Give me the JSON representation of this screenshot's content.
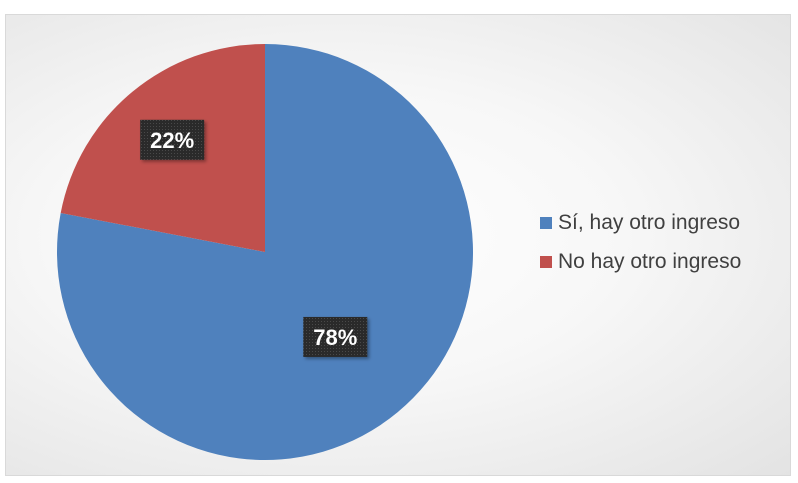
{
  "chart_data": {
    "type": "pie",
    "title": "",
    "categories": [
      "Sí, hay otro ingreso",
      "No hay otro ingreso"
    ],
    "values": [
      78,
      22
    ],
    "data_labels": [
      "78%",
      "22%"
    ],
    "colors": [
      "#4f81bd",
      "#c0504d"
    ],
    "legend_position": "right",
    "start_angle_deg": 0,
    "direction": "clockwise"
  }
}
